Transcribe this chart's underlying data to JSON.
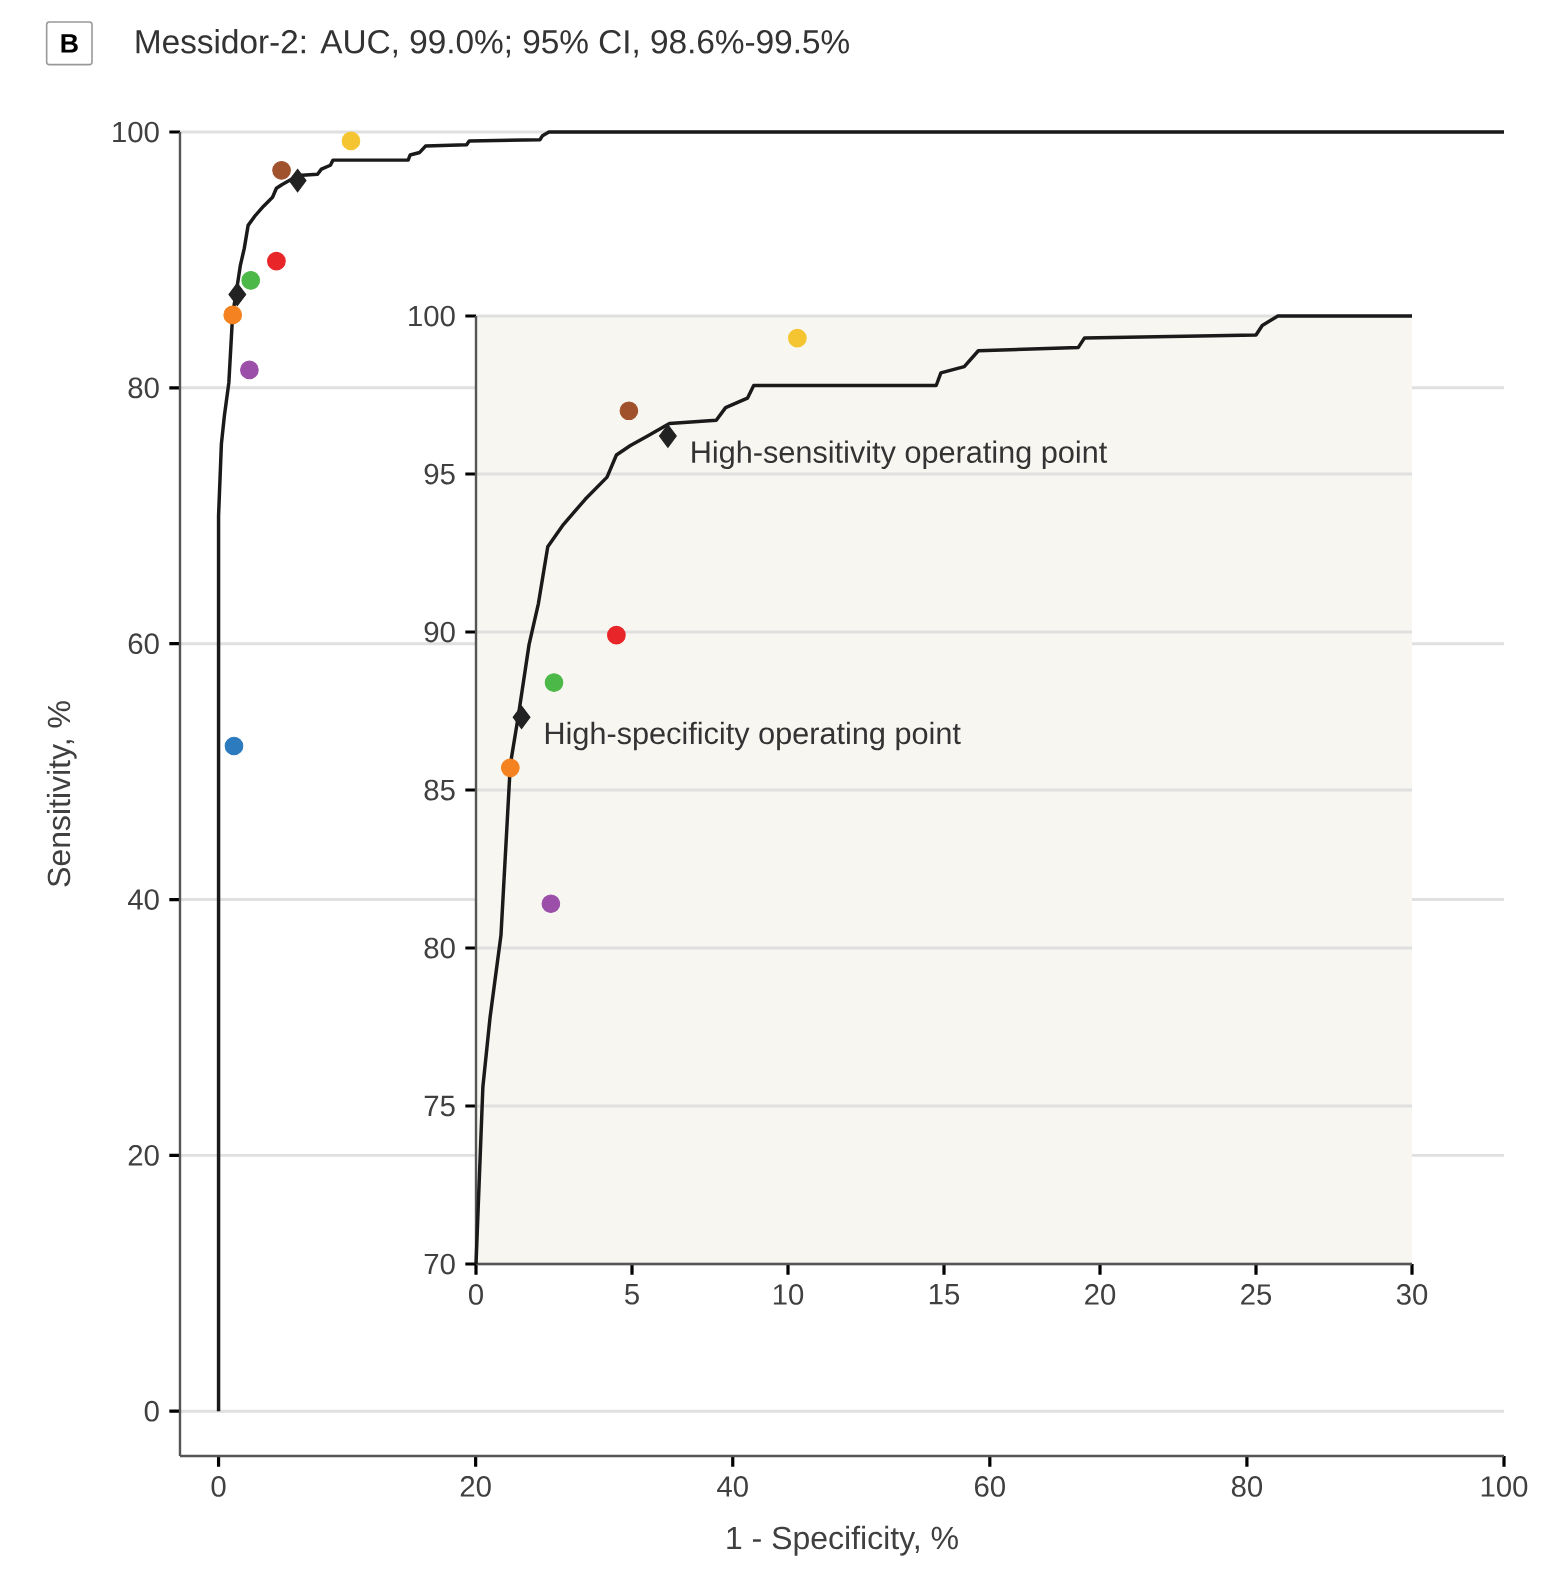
{
  "chart_data": [
    {
      "type": "line",
      "title": "Messidor-2: AUC, 99.0%; 95% CI, 98.6%-99.5%",
      "xlabel": "1 - Specificity, %",
      "ylabel": "Sensitivity, %",
      "annotations": [
        "B"
      ],
      "xlim": [
        -3,
        100
      ],
      "ylim": [
        -3.5,
        100
      ],
      "xticks": [
        0,
        20,
        40,
        60,
        80,
        100
      ],
      "yticks": [
        0,
        20,
        40,
        60,
        80,
        100
      ],
      "grid": "y",
      "series": [
        {
          "type": "line",
          "color": "#1a1a1a",
          "x": [
            0,
            0,
            0.22,
            0.45,
            0.8,
            1.0,
            1.1,
            1.35,
            1.7,
            2.0,
            2.3,
            2.8,
            3.5,
            4.2,
            4.5,
            4.95,
            5.5,
            6.2,
            7.7,
            8.0,
            8.7,
            8.9,
            14.75,
            14.9,
            15.65,
            16.1,
            19.3,
            19.5,
            25.0,
            25.2,
            25.7,
            30,
            100
          ],
          "values": [
            0,
            70,
            75.6,
            77.8,
            80.4,
            84,
            85.8,
            87.3,
            89.6,
            90.9,
            92.7,
            93.4,
            94.2,
            94.9,
            95.6,
            95.9,
            96.2,
            96.6,
            96.7,
            97.1,
            97.4,
            97.8,
            97.8,
            98.2,
            98.4,
            98.9,
            99.0,
            99.3,
            99.4,
            99.7,
            100,
            100,
            100
          ]
        },
        {
          "type": "scatter",
          "marker": "circle",
          "color": "#f5c531",
          "x": [
            10.3
          ],
          "values": [
            99.3
          ]
        },
        {
          "type": "scatter",
          "marker": "circle",
          "color": "#a0522d",
          "x": [
            4.9
          ],
          "values": [
            97.0
          ]
        },
        {
          "type": "scatter",
          "marker": "circle",
          "color": "#e8262a",
          "x": [
            4.5
          ],
          "values": [
            89.9
          ]
        },
        {
          "type": "scatter",
          "marker": "circle",
          "color": "#4cb848",
          "x": [
            2.5
          ],
          "values": [
            88.4
          ]
        },
        {
          "type": "scatter",
          "marker": "circle",
          "color": "#f58220",
          "x": [
            1.1
          ],
          "values": [
            85.7
          ]
        },
        {
          "type": "scatter",
          "marker": "circle",
          "color": "#9b4fa8",
          "x": [
            2.4
          ],
          "values": [
            81.4
          ]
        },
        {
          "type": "scatter",
          "marker": "circle",
          "color": "#2c7bbf",
          "x": [
            1.2
          ],
          "values": [
            52.0
          ]
        },
        {
          "type": "scatter",
          "marker": "diamond",
          "color": "#222222",
          "x": [
            1.46,
            6.15
          ],
          "values": [
            87.3,
            96.2
          ]
        }
      ]
    },
    {
      "type": "line",
      "annotations": [
        {
          "text": "High-sensitivity operating point",
          "x": 6.15,
          "y": 96.2
        },
        {
          "text": "High-specificity operating point",
          "x": 1.46,
          "y": 87.3
        }
      ],
      "xlim": [
        0,
        30
      ],
      "ylim": [
        70,
        100
      ],
      "xticks": [
        0,
        5,
        10,
        15,
        20,
        25,
        30
      ],
      "yticks": [
        70,
        75,
        80,
        85,
        90,
        95,
        100
      ],
      "grid": "y",
      "series": [
        {
          "type": "line",
          "color": "#1a1a1a",
          "x": [
            0,
            0.22,
            0.45,
            0.8,
            1.0,
            1.1,
            1.35,
            1.7,
            2.0,
            2.3,
            2.8,
            3.5,
            4.2,
            4.5,
            4.95,
            5.5,
            6.2,
            7.7,
            8.0,
            8.7,
            8.9,
            14.75,
            14.9,
            15.65,
            16.1,
            19.3,
            19.5,
            25.0,
            25.2,
            25.7,
            30
          ],
          "values": [
            70,
            75.6,
            77.8,
            80.4,
            84,
            85.8,
            87.3,
            89.6,
            90.9,
            92.7,
            93.4,
            94.2,
            94.9,
            95.6,
            95.9,
            96.2,
            96.6,
            96.7,
            97.1,
            97.4,
            97.8,
            97.8,
            98.2,
            98.4,
            98.9,
            99.0,
            99.3,
            99.4,
            99.7,
            100,
            100
          ]
        },
        {
          "type": "scatter",
          "marker": "circle",
          "color": "#f5c531",
          "x": [
            10.3
          ],
          "values": [
            99.3
          ]
        },
        {
          "type": "scatter",
          "marker": "circle",
          "color": "#a0522d",
          "x": [
            4.9
          ],
          "values": [
            97.0
          ]
        },
        {
          "type": "scatter",
          "marker": "circle",
          "color": "#e8262a",
          "x": [
            4.5
          ],
          "values": [
            89.9
          ]
        },
        {
          "type": "scatter",
          "marker": "circle",
          "color": "#4cb848",
          "x": [
            2.5
          ],
          "values": [
            88.4
          ]
        },
        {
          "type": "scatter",
          "marker": "circle",
          "color": "#f58220",
          "x": [
            1.1
          ],
          "values": [
            85.7
          ]
        },
        {
          "type": "scatter",
          "marker": "circle",
          "color": "#9b4fa8",
          "x": [
            2.4
          ],
          "values": [
            81.4
          ]
        },
        {
          "type": "scatter",
          "marker": "diamond",
          "color": "#222222",
          "x": [
            1.46,
            6.15
          ],
          "values": [
            87.3,
            96.2
          ]
        }
      ]
    }
  ]
}
